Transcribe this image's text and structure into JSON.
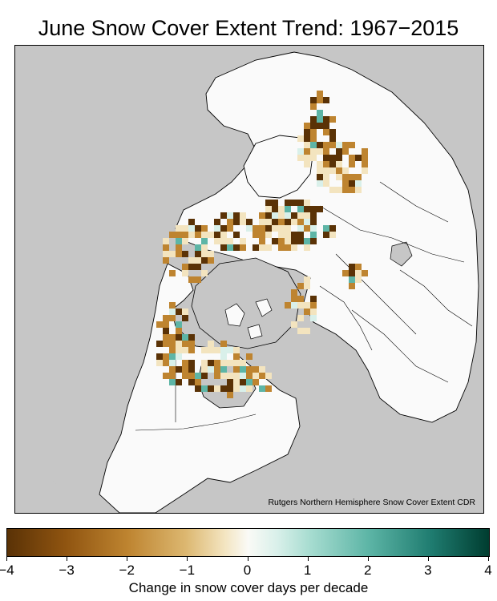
{
  "title": "June Snow Cover Extent Trend: 1967−2015",
  "credit": "Rutgers Northern Hemisphere Snow Cover Extent CDR",
  "projection": "polar stereographic, Northern Hemisphere",
  "colors": {
    "ocean": "#c6c6c6",
    "land": "#fafafa",
    "strong_decrease": "#5a3206",
    "decrease": "#be8430",
    "weak_decrease": "#f3e4bf",
    "weak_increase": "#d9f0ea",
    "increase": "#5db5a6",
    "strong_increase": "#1f7c70"
  },
  "colorbar": {
    "min": -4,
    "max": 4,
    "ticks": [
      "−4",
      "−3",
      "−2",
      "−1",
      "0",
      "1",
      "2",
      "3",
      "4"
    ],
    "label": "Change in snow cover days per decade",
    "colormap": "diverging brown-white-teal"
  }
}
